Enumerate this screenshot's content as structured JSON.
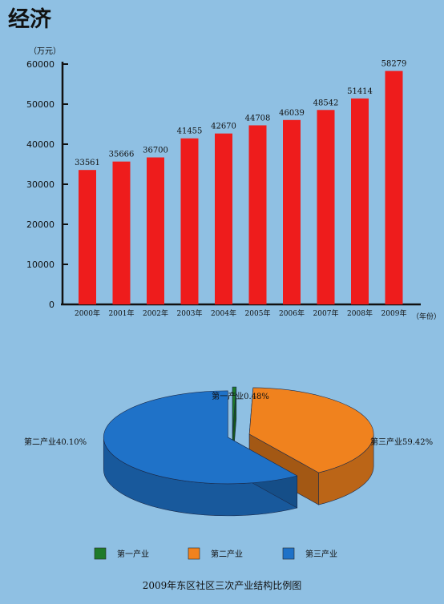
{
  "page": {
    "title": "经济"
  },
  "chart_data": [
    {
      "type": "bar",
      "ylabel": "（万元）",
      "xlabel": "（年份）",
      "ylim": [
        0,
        60000
      ],
      "yticks": [
        "0",
        "10000",
        "20000",
        "30000",
        "40000",
        "50000",
        "60000"
      ],
      "categories": [
        "2000年",
        "2001年",
        "2002年",
        "2003年",
        "2004年",
        "2005年",
        "2006年",
        "2007年",
        "2008年",
        "2009年"
      ],
      "values": [
        33561,
        35666,
        36700,
        41455,
        42670,
        44708,
        46039,
        48542,
        51414,
        58279
      ],
      "bar_color": "#ee1c1c",
      "grid": false
    },
    {
      "type": "pie",
      "title": "2009年东区社区三次产业结构比例图",
      "slices": [
        {
          "name": "第一产业",
          "value": 0.48,
          "label": "第一产业0.48%",
          "color": "#1f7a2a"
        },
        {
          "name": "第二产业",
          "value": 40.1,
          "label": "第二产业40.10%",
          "color": "#f0821e"
        },
        {
          "name": "第三产业",
          "value": 59.42,
          "label": "第三产业59.42%",
          "color": "#1f72c8"
        }
      ],
      "legend": [
        "第一产业",
        "第二产业",
        "第三产业"
      ],
      "legend_position": "bottom"
    }
  ]
}
